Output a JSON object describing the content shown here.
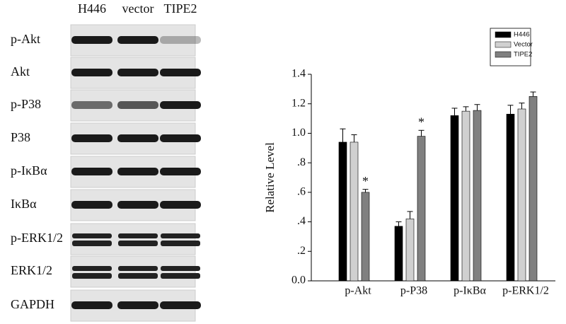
{
  "blot": {
    "columns": [
      "H446",
      "vector",
      "TIPE2"
    ],
    "rows": [
      "p-Akt",
      "Akt",
      "p-P38",
      "P38",
      "p-IκBα",
      "IκBα",
      "p-ERK1/2",
      "ERK1/2",
      "GAPDH"
    ]
  },
  "chart_data": {
    "type": "bar",
    "y_label": "Relative Level",
    "categories": [
      "p-Akt",
      "p-P38",
      "p-IκBα",
      "p-ERK1/2"
    ],
    "series": [
      {
        "name": "H446",
        "color": "#000000",
        "values": [
          0.94,
          0.37,
          1.12,
          1.13
        ],
        "errors": [
          0.09,
          0.03,
          0.05,
          0.06
        ]
      },
      {
        "name": "Vector",
        "color": "#d0d0d0",
        "values": [
          0.94,
          0.42,
          1.15,
          1.165
        ],
        "errors": [
          0.05,
          0.05,
          0.03,
          0.04
        ]
      },
      {
        "name": "TIPE2",
        "color": "#808080",
        "values": [
          0.6,
          0.98,
          1.155,
          1.25
        ],
        "errors": [
          0.02,
          0.04,
          0.04,
          0.03
        ]
      }
    ],
    "annotations": [
      {
        "text": "*",
        "category": "p-Akt",
        "series": "TIPE2"
      },
      {
        "text": "*",
        "category": "p-P38",
        "series": "TIPE2"
      }
    ],
    "ylim": [
      0,
      1.4
    ],
    "yticks": [
      {
        "value": 0,
        "label": "0.0"
      },
      {
        "value": 0.2,
        "label": ".2"
      },
      {
        "value": 0.4,
        "label": ".4"
      },
      {
        "value": 0.6,
        "label": ".6"
      },
      {
        "value": 0.8,
        "label": ".8"
      },
      {
        "value": 1,
        "label": "1.0"
      },
      1.2,
      1.4
    ],
    "legend": "top-right"
  }
}
